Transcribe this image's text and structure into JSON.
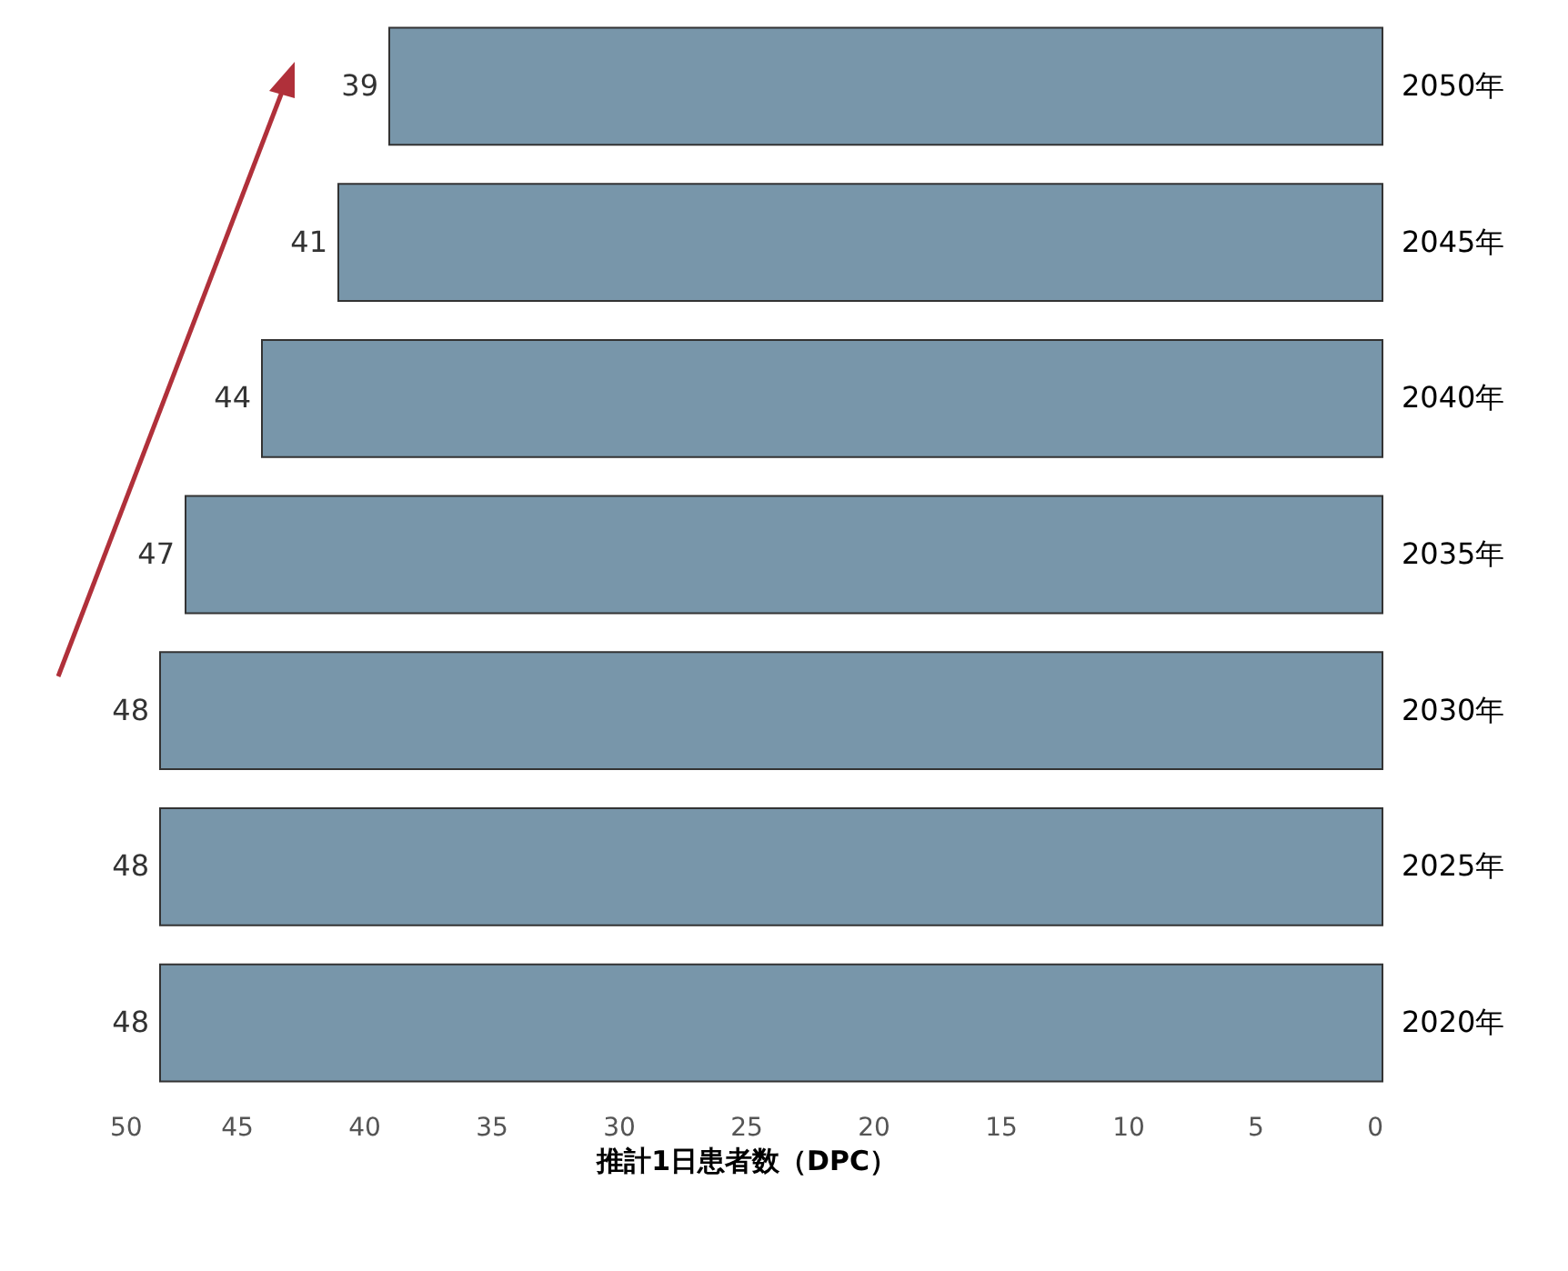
{
  "chart_data": {
    "type": "bar",
    "orientation": "horizontal",
    "xlabel": "推計1日患者数（DPC）",
    "categories": [
      "2050年",
      "2045年",
      "2040年",
      "2035年",
      "2030年",
      "2025年",
      "2020年"
    ],
    "values": [
      39,
      41,
      44,
      47,
      48,
      48,
      48
    ],
    "color": "#7896aa",
    "xlim": [
      50,
      0
    ],
    "xticks": [
      0,
      5,
      10,
      15,
      20,
      25,
      30,
      35,
      40,
      45,
      50
    ],
    "data_labels": true,
    "grid": false
  }
}
